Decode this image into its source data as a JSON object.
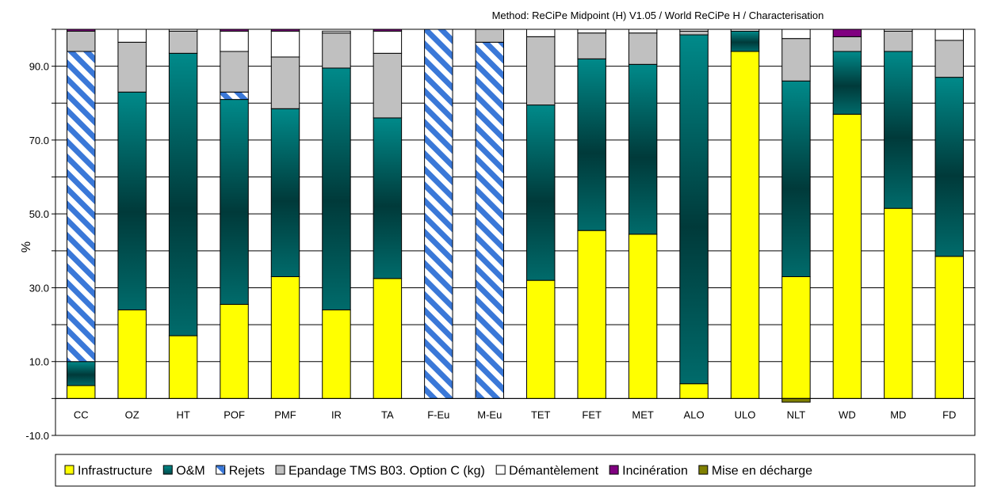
{
  "chart_data": {
    "type": "bar",
    "stacked": true,
    "title": "Method: ReCiPe Midpoint (H) V1.05 /  World ReCiPe H / Characterisation",
    "ylabel": "%",
    "xlabel": "",
    "ylim": [
      -10,
      100
    ],
    "yticks": [
      {
        "value": 90,
        "label": "90.0"
      },
      {
        "value": 70,
        "label": "70.0"
      },
      {
        "value": 50,
        "label": "50.0"
      },
      {
        "value": 30,
        "label": "30.0"
      },
      {
        "value": 10,
        "label": "10.0"
      },
      {
        "value": -10,
        "label": "-10.0"
      }
    ],
    "grid": "horizontal",
    "legend_position": "bottom",
    "categories": [
      "CC",
      "OZ",
      "HT",
      "POF",
      "PMF",
      "IR",
      "TA",
      "F-Eu",
      "M-Eu",
      "TET",
      "FET",
      "MET",
      "ALO",
      "ULO",
      "NLT",
      "WD",
      "MD",
      "FD"
    ],
    "series": [
      {
        "name": "Infrastructure",
        "color": "#ffff00",
        "pattern": "solid",
        "values": [
          3.5,
          24,
          17,
          25.5,
          33,
          24,
          32.5,
          0,
          0,
          32,
          45.5,
          44.5,
          4,
          94,
          33,
          77,
          51.5,
          38.5
        ]
      },
      {
        "name": "O&M",
        "color": "#008080",
        "pattern": "gradient",
        "values": [
          6.5,
          59,
          76.5,
          55.5,
          45.5,
          65.5,
          43.5,
          0,
          0,
          47.5,
          46.5,
          46,
          94.5,
          5.5,
          53,
          17,
          42.5,
          48.5
        ]
      },
      {
        "name": "Rejets",
        "color": "#3a78d8",
        "pattern": "hatch",
        "values": [
          84,
          0,
          0,
          2,
          0,
          0,
          0,
          100,
          96.5,
          0,
          0,
          0,
          0,
          0,
          0,
          0,
          0,
          0
        ]
      },
      {
        "name": "Epandage TMS B03. Option C (kg)",
        "color": "#c0c0c0",
        "pattern": "solid",
        "values": [
          5.5,
          13.5,
          6,
          11,
          14,
          9.5,
          17.5,
          0,
          3.5,
          18.5,
          7,
          8.5,
          1,
          0,
          11.5,
          4,
          5.5,
          10
        ]
      },
      {
        "name": "Démantèlement",
        "color": "#ffffff",
        "pattern": "solid",
        "values": [
          0,
          3.5,
          0.5,
          5.5,
          7,
          0.5,
          6,
          0,
          0,
          2,
          1,
          1,
          0.5,
          0.5,
          2.5,
          0,
          0.5,
          3
        ]
      },
      {
        "name": "Incinération",
        "color": "#800080",
        "pattern": "solid",
        "values": [
          0.5,
          0,
          0,
          0.5,
          0.5,
          0,
          0.5,
          0,
          0,
          0,
          0,
          0,
          0,
          0,
          0,
          2,
          0,
          0
        ]
      },
      {
        "name": "Mise en décharge",
        "color": "#808000",
        "pattern": "solid",
        "values": [
          0,
          0,
          0,
          0,
          0,
          0,
          0,
          0,
          0,
          0,
          0,
          0,
          0,
          0,
          -1,
          0,
          0,
          0
        ]
      }
    ]
  }
}
